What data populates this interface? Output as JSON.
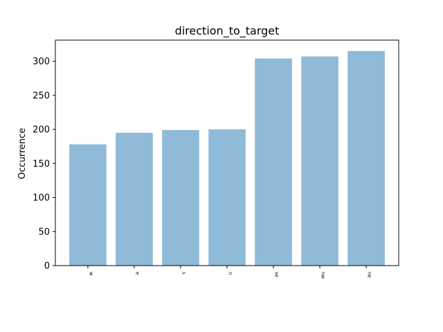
{
  "chart_data": {
    "type": "bar",
    "title": "direction_to_target",
    "xlabel": "",
    "ylabel": "Occurrence",
    "categories": [
      "w",
      "e",
      "s",
      "n",
      "se",
      "nw",
      "ne"
    ],
    "values": [
      178,
      195,
      199,
      200,
      304,
      307,
      315
    ],
    "ylim": [
      0,
      331
    ],
    "yticks": [
      0,
      50,
      100,
      150,
      200,
      250,
      300
    ],
    "bar_color": "#8fbad8",
    "grid": false,
    "legend": "none"
  }
}
